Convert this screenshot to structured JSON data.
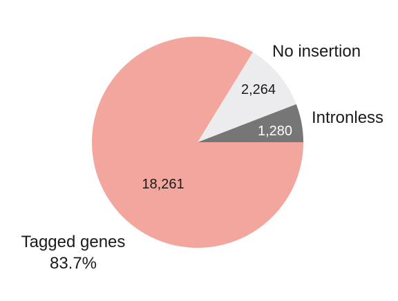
{
  "chart_data": {
    "type": "pie",
    "start_angle_deg": 0,
    "direction": "counterclockwise",
    "slices": [
      {
        "key": "intronless",
        "category": "Intronless",
        "value": 1280,
        "value_label": "1,280",
        "percent_label": "",
        "color": "#767676",
        "value_color": "#ffffff"
      },
      {
        "key": "no-insertion",
        "category": "No insertion",
        "value": 2264,
        "value_label": "2,264",
        "percent_label": "",
        "color": "#ececee",
        "value_color": "#1a1a1a"
      },
      {
        "key": "tagged-genes",
        "category": "Tagged genes",
        "value": 18261,
        "value_label": "18,261",
        "percent_label": "83.7%",
        "color": "#f2a69d",
        "value_color": "#1a1a1a"
      }
    ]
  }
}
